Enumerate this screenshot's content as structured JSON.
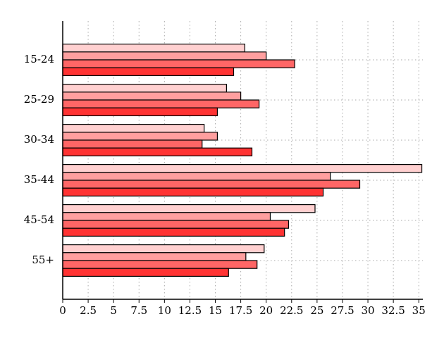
{
  "chart_data": {
    "type": "bar",
    "orientation": "horizontal",
    "categories": [
      "15-24",
      "25-29",
      "30-34",
      "35-44",
      "45-54",
      "55+"
    ],
    "series": [
      {
        "color": "#ffd0d0",
        "values": [
          17.9,
          16.1,
          13.9,
          35.3,
          24.8,
          19.8
        ]
      },
      {
        "color": "#ff9f9f",
        "values": [
          20,
          17.5,
          15.2,
          26.3,
          20.4,
          18
        ]
      },
      {
        "color": "#ff6666",
        "values": [
          22.8,
          19.3,
          13.7,
          29.2,
          22.2,
          19.1
        ]
      },
      {
        "color": "#ff3333",
        "values": [
          16.8,
          15.2,
          18.6,
          25.6,
          21.8,
          16.3
        ]
      }
    ],
    "xlim": [
      0,
      35.4
    ],
    "xticks": [
      0,
      2.5,
      5,
      7.5,
      10,
      12.5,
      15,
      17.5,
      20,
      22.5,
      25,
      27.5,
      30,
      32.5,
      35
    ],
    "grid": true
  }
}
